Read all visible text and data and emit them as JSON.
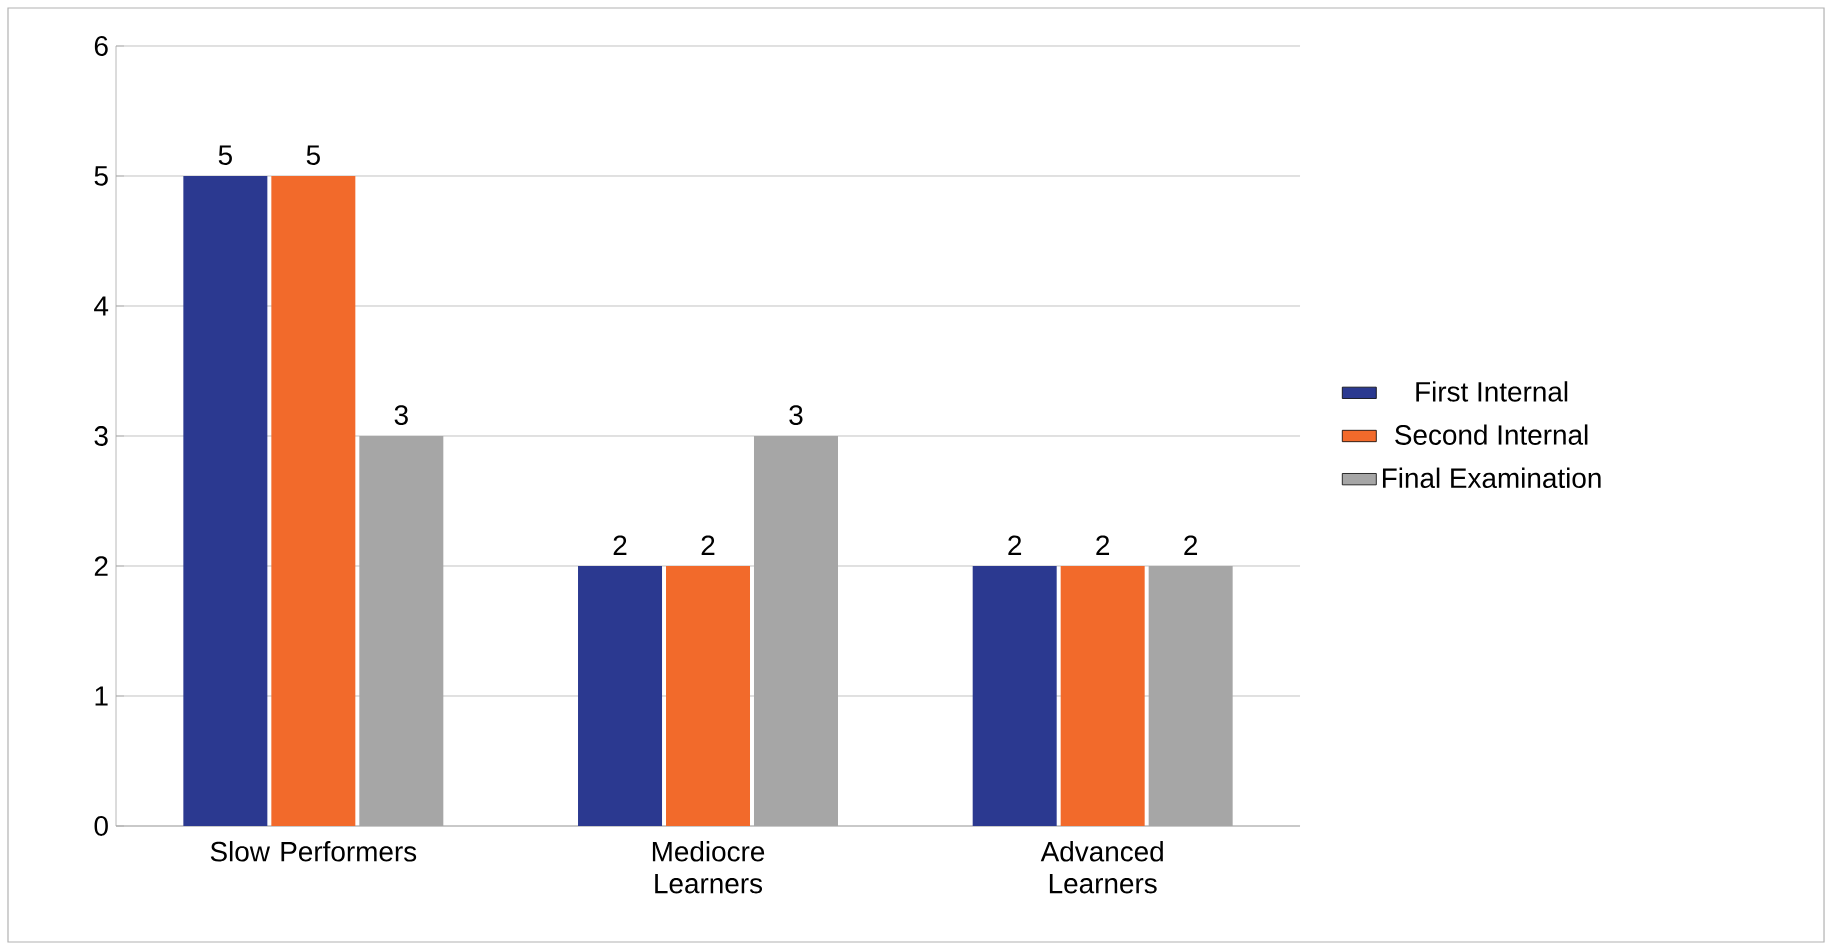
{
  "chart_data": {
    "type": "bar",
    "categories": [
      "Slow Performers",
      "Mediocre Learners",
      "Advanced Learners"
    ],
    "series": [
      {
        "name": "First Internal",
        "color": "#2b3990",
        "values": [
          5,
          2,
          2
        ]
      },
      {
        "name": "Second Internal",
        "color": "#f26a2b",
        "values": [
          5,
          2,
          2
        ]
      },
      {
        "name": "Final Examination",
        "color": "#a6a6a6",
        "values": [
          3,
          3,
          2
        ]
      }
    ],
    "ylim": [
      0,
      6
    ],
    "yticks": [
      0,
      1,
      2,
      3,
      4,
      5,
      6
    ],
    "grid": "y",
    "legend": "right",
    "data_labels": true
  }
}
